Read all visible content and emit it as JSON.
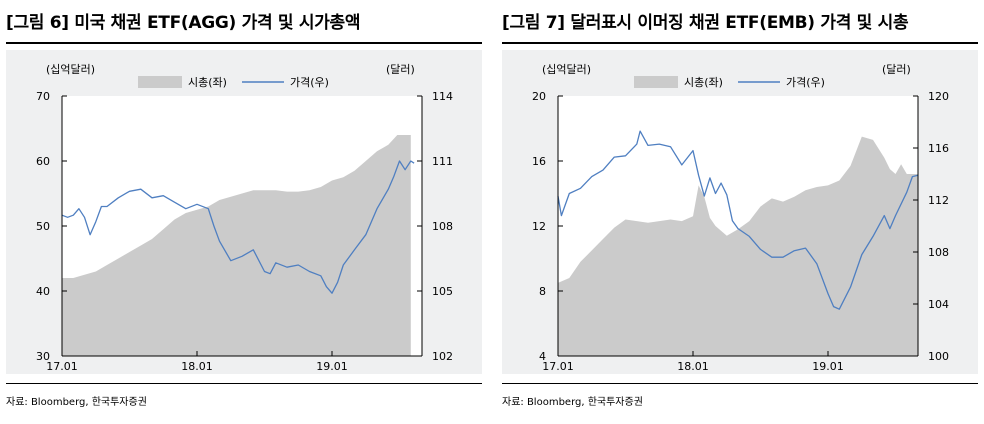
{
  "charts": [
    {
      "title": "[그림 6] 미국 채권 ETF(AGG) 가격 및 시가총액",
      "source": "자료: Bloomberg, 한국투자증권",
      "chart_data": {
        "type": "area",
        "left_unit": "(십억달러)",
        "right_unit": "(달러)",
        "legend": [
          "시총(좌)",
          "가격(우)"
        ],
        "x_tick_labels": [
          "17.01",
          "18.01",
          "19.01"
        ],
        "left_axis": {
          "range": [
            30,
            70
          ],
          "ticks": [
            30,
            40,
            50,
            60,
            70
          ]
        },
        "right_axis": {
          "range": [
            102,
            114
          ],
          "ticks": [
            102,
            105,
            108,
            111,
            114
          ]
        },
        "x_range": [
          0,
          32
        ],
        "series": [
          {
            "name": "시총(좌)",
            "axis": "left",
            "type": "area",
            "points": [
              [
                0,
                42
              ],
              [
                1,
                42
              ],
              [
                2,
                42.5
              ],
              [
                3,
                43
              ],
              [
                4,
                44
              ],
              [
                5,
                45
              ],
              [
                6,
                46
              ],
              [
                7,
                47
              ],
              [
                8,
                48
              ],
              [
                9,
                49.5
              ],
              [
                10,
                51
              ],
              [
                11,
                52
              ],
              [
                12,
                52.5
              ],
              [
                13,
                53
              ],
              [
                14,
                54
              ],
              [
                15,
                54.5
              ],
              [
                16,
                55
              ],
              [
                17,
                55.5
              ],
              [
                18,
                55.5
              ],
              [
                19,
                55.5
              ],
              [
                20,
                55.3
              ],
              [
                21,
                55.3
              ],
              [
                22,
                55.5
              ],
              [
                23,
                56
              ],
              [
                24,
                57
              ],
              [
                25,
                57.5
              ],
              [
                26,
                58.5
              ],
              [
                27,
                60
              ],
              [
                28,
                61.5
              ],
              [
                29,
                62.5
              ],
              [
                29.8,
                64
              ],
              [
                30.5,
                64
              ],
              [
                31,
                64
              ]
            ]
          },
          {
            "name": "가격(우)",
            "axis": "right",
            "type": "line",
            "points": [
              [
                0,
                108.5
              ],
              [
                0.5,
                108.4
              ],
              [
                1,
                108.5
              ],
              [
                1.5,
                108.8
              ],
              [
                2,
                108.4
              ],
              [
                2.5,
                107.6
              ],
              [
                3,
                108.2
              ],
              [
                3.5,
                108.9
              ],
              [
                4,
                108.9
              ],
              [
                5,
                109.3
              ],
              [
                6,
                109.6
              ],
              [
                7,
                109.7
              ],
              [
                8,
                109.3
              ],
              [
                9,
                109.4
              ],
              [
                10,
                109.1
              ],
              [
                11,
                108.8
              ],
              [
                12,
                109
              ],
              [
                13,
                108.8
              ],
              [
                13.5,
                108
              ],
              [
                14,
                107.3
              ],
              [
                15,
                106.4
              ],
              [
                16,
                106.6
              ],
              [
                17,
                106.9
              ],
              [
                18,
                105.9
              ],
              [
                18.5,
                105.8
              ],
              [
                19,
                106.3
              ],
              [
                20,
                106.1
              ],
              [
                21,
                106.2
              ],
              [
                22,
                105.9
              ],
              [
                23,
                105.7
              ],
              [
                23.5,
                105.2
              ],
              [
                24,
                104.9
              ],
              [
                24.5,
                105.4
              ],
              [
                25,
                106.2
              ],
              [
                26,
                106.9
              ],
              [
                27,
                107.6
              ],
              [
                28,
                108.8
              ],
              [
                29,
                109.7
              ],
              [
                29.5,
                110.3
              ],
              [
                30,
                111.0
              ],
              [
                30.5,
                110.6
              ],
              [
                31,
                111.0
              ],
              [
                31.3,
                110.9
              ]
            ]
          }
        ]
      }
    },
    {
      "title": "[그림 7] 달러표시 이머징 채권 ETF(EMB) 가격 및 시총",
      "source": "자료: Bloomberg, 한국투자증권",
      "chart_data": {
        "type": "area",
        "left_unit": "(십억달러)",
        "right_unit": "(달러)",
        "legend": [
          "시총(좌)",
          "가격(우)"
        ],
        "x_tick_labels": [
          "17.01",
          "18.01",
          "19.01"
        ],
        "left_axis": {
          "range": [
            4,
            20
          ],
          "ticks": [
            4,
            8,
            12,
            16,
            20
          ]
        },
        "right_axis": {
          "range": [
            100,
            120
          ],
          "ticks": [
            100,
            104,
            108,
            112,
            116,
            120
          ]
        },
        "x_range": [
          0,
          32
        ],
        "series": [
          {
            "name": "시총(좌)",
            "axis": "left",
            "type": "area",
            "points": [
              [
                0,
                8.5
              ],
              [
                1,
                8.8
              ],
              [
                2,
                9.8
              ],
              [
                3,
                10.5
              ],
              [
                4,
                11.2
              ],
              [
                5,
                11.9
              ],
              [
                6,
                12.4
              ],
              [
                7,
                12.3
              ],
              [
                8,
                12.2
              ],
              [
                9,
                12.3
              ],
              [
                10,
                12.4
              ],
              [
                11,
                12.3
              ],
              [
                12,
                12.6
              ],
              [
                12.5,
                14.5
              ],
              [
                13,
                13.8
              ],
              [
                13.5,
                12.5
              ],
              [
                14,
                12
              ],
              [
                15,
                11.4
              ],
              [
                16,
                11.8
              ],
              [
                17,
                12.3
              ],
              [
                18,
                13.2
              ],
              [
                19,
                13.7
              ],
              [
                20,
                13.5
              ],
              [
                21,
                13.8
              ],
              [
                22,
                14.2
              ],
              [
                23,
                14.4
              ],
              [
                24,
                14.5
              ],
              [
                25,
                14.8
              ],
              [
                26,
                15.7
              ],
              [
                27,
                17.5
              ],
              [
                28,
                17.3
              ],
              [
                29,
                16.2
              ],
              [
                29.5,
                15.5
              ],
              [
                30,
                15.2
              ],
              [
                30.5,
                15.8
              ],
              [
                31,
                15.2
              ],
              [
                32,
                15.2
              ]
            ]
          },
          {
            "name": "가격(우)",
            "axis": "right",
            "type": "line",
            "points": [
              [
                0,
                112.3
              ],
              [
                0.3,
                110.8
              ],
              [
                1,
                112.5
              ],
              [
                2,
                112.9
              ],
              [
                3,
                113.8
              ],
              [
                4,
                114.3
              ],
              [
                5,
                115.3
              ],
              [
                6,
                115.4
              ],
              [
                7,
                116.3
              ],
              [
                7.3,
                117.3
              ],
              [
                8,
                116.2
              ],
              [
                9,
                116.3
              ],
              [
                10,
                116.1
              ],
              [
                11,
                114.7
              ],
              [
                12,
                115.8
              ],
              [
                12.5,
                113.9
              ],
              [
                13,
                112.3
              ],
              [
                13.5,
                113.7
              ],
              [
                14,
                112.5
              ],
              [
                14.5,
                113.3
              ],
              [
                15,
                112.4
              ],
              [
                15.5,
                110.4
              ],
              [
                16,
                109.8
              ],
              [
                17,
                109.2
              ],
              [
                18,
                108.2
              ],
              [
                19,
                107.6
              ],
              [
                20,
                107.6
              ],
              [
                21,
                108.1
              ],
              [
                22,
                108.3
              ],
              [
                23,
                107.1
              ],
              [
                24,
                104.8
              ],
              [
                24.5,
                103.8
              ],
              [
                25,
                103.6
              ],
              [
                26,
                105.3
              ],
              [
                27,
                107.8
              ],
              [
                28,
                109.2
              ],
              [
                29,
                110.8
              ],
              [
                29.5,
                109.8
              ],
              [
                30,
                110.8
              ],
              [
                31,
                112.6
              ],
              [
                31.5,
                113.8
              ],
              [
                32,
                113.9
              ]
            ]
          }
        ]
      }
    }
  ]
}
